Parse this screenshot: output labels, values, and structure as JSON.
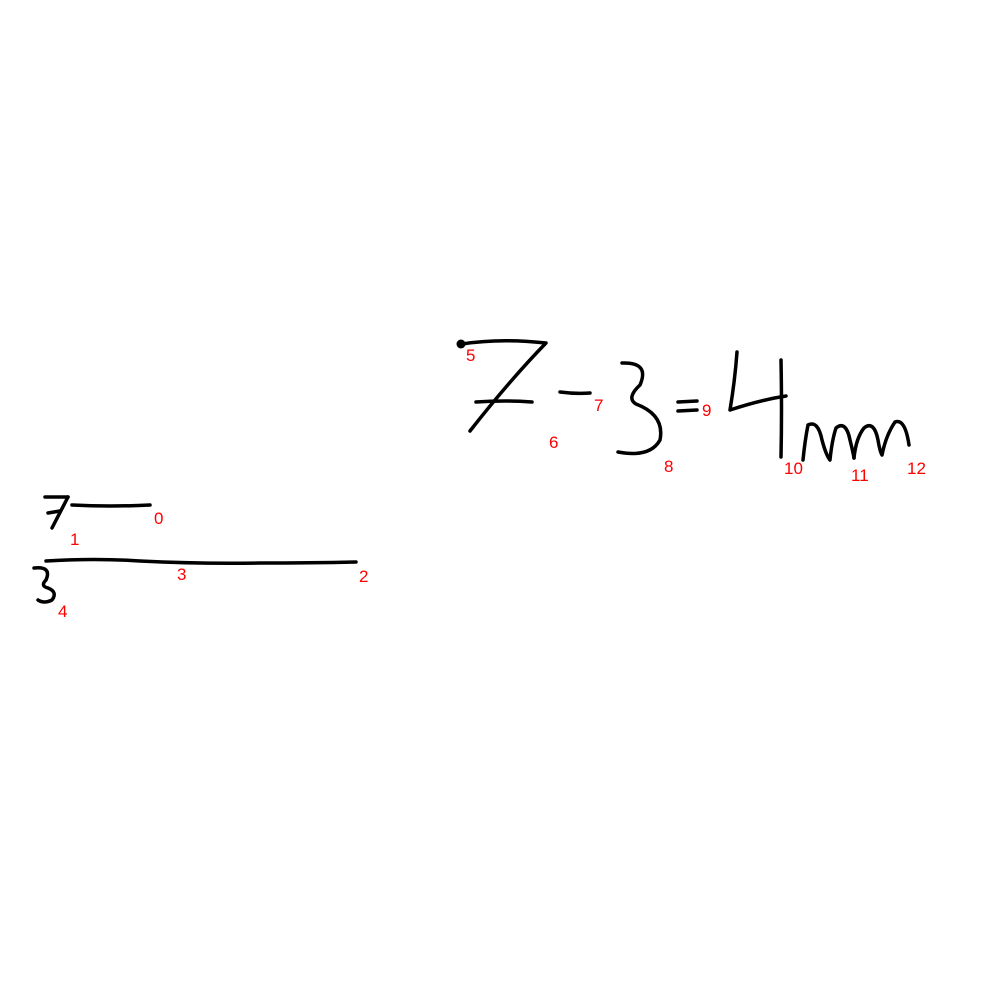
{
  "canvas": {
    "background": "#ffffff",
    "stroke_color": "#000000",
    "label_color": "#ff0000"
  },
  "labels": [
    "0",
    "1",
    "2",
    "3",
    "4",
    "5",
    "6",
    "7",
    "8",
    "9",
    "10",
    "11",
    "12"
  ]
}
